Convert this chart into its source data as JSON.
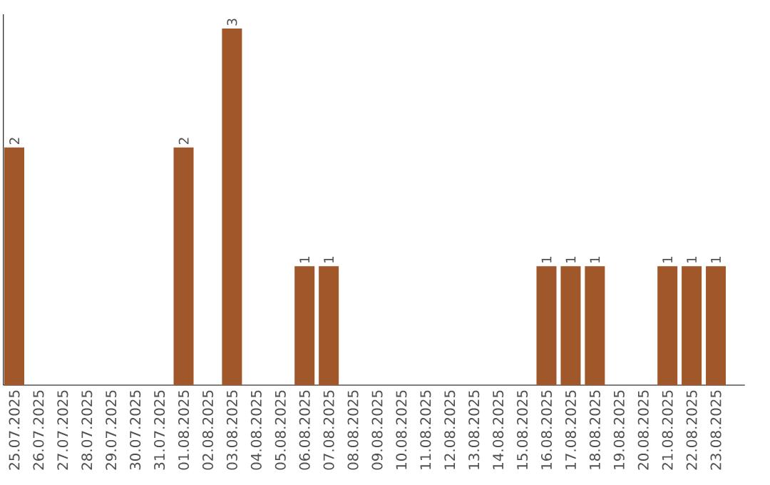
{
  "chart_data": {
    "type": "bar",
    "categories": [
      "25.07.2025",
      "26.07.2025",
      "27.07.2025",
      "28.07.2025",
      "29.07.2025",
      "30.07.2025",
      "31.07.2025",
      "01.08.2025",
      "02.08.2025",
      "03.08.2025",
      "04.08.2025",
      "05.08.2025",
      "06.08.2025",
      "07.08.2025",
      "08.08.2025",
      "09.08.2025",
      "10.08.2025",
      "11.08.2025",
      "12.08.2025",
      "13.08.2025",
      "14.08.2025",
      "15.08.2025",
      "16.08.2025",
      "17.08.2025",
      "18.08.2025",
      "19.08.2025",
      "20.08.2025",
      "21.08.2025",
      "22.08.2025",
      "23.08.2025"
    ],
    "values": [
      2,
      0,
      0,
      0,
      0,
      0,
      0,
      2,
      0,
      3,
      0,
      0,
      1,
      1,
      0,
      0,
      0,
      0,
      0,
      0,
      0,
      0,
      1,
      1,
      1,
      0,
      0,
      1,
      1,
      1
    ],
    "value_labels": [
      "2",
      null,
      null,
      null,
      null,
      null,
      null,
      "2",
      null,
      "3",
      null,
      null,
      "1",
      "1",
      null,
      null,
      null,
      null,
      null,
      null,
      null,
      null,
      "1",
      "1",
      "1",
      null,
      null,
      "1",
      "1",
      "1"
    ],
    "color": "#a0582a"
  }
}
